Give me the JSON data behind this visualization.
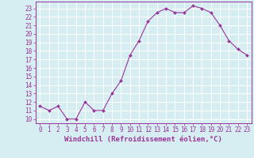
{
  "x": [
    0,
    1,
    2,
    3,
    4,
    5,
    6,
    7,
    8,
    9,
    10,
    11,
    12,
    13,
    14,
    15,
    16,
    17,
    18,
    19,
    20,
    21,
    22,
    23
  ],
  "y": [
    11.5,
    11.0,
    11.5,
    10.0,
    10.0,
    12.0,
    11.0,
    11.0,
    13.0,
    14.5,
    17.5,
    19.2,
    21.5,
    22.5,
    23.0,
    22.5,
    22.5,
    23.3,
    23.0,
    22.5,
    21.0,
    19.2,
    18.2,
    17.5
  ],
  "line_color": "#993399",
  "marker": "D",
  "marker_size": 2.0,
  "bg_color": "#d6eef2",
  "grid_color": "#ffffff",
  "xlabel": "Windchill (Refroidissement éolien,°C)",
  "xlim": [
    -0.5,
    23.5
  ],
  "ylim": [
    9.5,
    23.8
  ],
  "yticks": [
    10,
    11,
    12,
    13,
    14,
    15,
    16,
    17,
    18,
    19,
    20,
    21,
    22,
    23
  ],
  "xticks": [
    0,
    1,
    2,
    3,
    4,
    5,
    6,
    7,
    8,
    9,
    10,
    11,
    12,
    13,
    14,
    15,
    16,
    17,
    18,
    19,
    20,
    21,
    22,
    23
  ],
  "font_color": "#993399",
  "label_fontsize": 6.5,
  "tick_fontsize": 5.5
}
